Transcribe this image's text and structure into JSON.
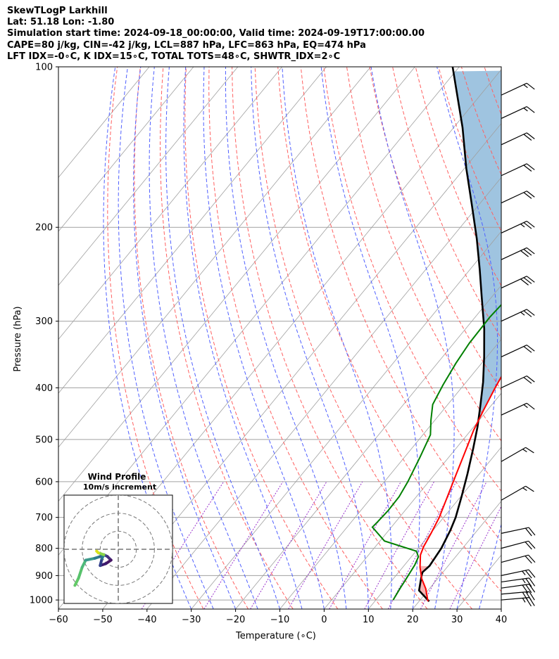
{
  "header": {
    "line1": "SkewTLogP Larkhill",
    "line2": "Lat: 51.18   Lon: -1.80",
    "line3": "Simulation start time: 2024-09-18_00:00:00, Valid time: 2024-09-19T17:00:00.00",
    "line4": "CAPE=80 j/kg, CIN=-42 j/kg, LCL=887 hPa, LFC=863 hPa, EQ=474 hPa",
    "line5": "LFT IDX=-0∘C, K IDX=15∘C, TOTAL TOTS=48∘C, SHWTR_IDX=2∘C"
  },
  "colors": {
    "temperature": "#ff0000",
    "dewpoint": "#008000",
    "parcel": "#000000",
    "cape_fill": "#7fb0d5",
    "dry_adiabat": "#ff6060",
    "moist_adiabat": "#5060ff",
    "mixing_ratio": "#9932cc",
    "isotherm": "#a0a0a0"
  },
  "chart_data": [
    {
      "type": "line",
      "subtype": "skew-T log-P diagram",
      "xlabel": "Temperature (∘C)",
      "ylabel": "Pressure (hPa)",
      "x_ticks": [
        -60,
        -50,
        -40,
        -30,
        -20,
        -10,
        0,
        10,
        20,
        30,
        40
      ],
      "x_tick_labels": [
        "−60",
        "−50",
        "−40",
        "−30",
        "−20",
        "−10",
        "0",
        "10",
        "20",
        "30",
        "40"
      ],
      "y_ticks": [
        100,
        200,
        300,
        400,
        500,
        600,
        700,
        800,
        900,
        1000
      ],
      "y_tick_labels": [
        "100",
        "200",
        "300",
        "400",
        "500",
        "600",
        "700",
        "800",
        "900",
        "1000"
      ],
      "xlim": [
        -60,
        40
      ],
      "ylim": [
        1040,
        100
      ],
      "y_scale": "log",
      "grid": true,
      "series": [
        {
          "key": "temperature",
          "points": [
            [
              1006,
              22.0
            ],
            [
              953,
              19.2
            ],
            [
              912,
              16.4
            ],
            [
              868,
              13.9
            ],
            [
              823,
              11.7
            ],
            [
              794,
              10.9
            ],
            [
              750,
              10.1
            ],
            [
              700,
              9.0
            ],
            [
              640,
              7.0
            ],
            [
              580,
              4.8
            ],
            [
              530,
              2.8
            ],
            [
              480,
              0.6
            ],
            [
              440,
              -0.9
            ],
            [
              400,
              -2.4
            ],
            [
              350,
              -4.2
            ],
            [
              305,
              -6.5
            ],
            [
              270,
              -8.1
            ],
            [
              244,
              -8.8
            ],
            [
              226,
              -9.1
            ],
            [
              210,
              -8.4
            ],
            [
              198,
              -7.1
            ],
            [
              183,
              -5.0
            ],
            [
              170,
              -2.8
            ],
            [
              158,
              -0.8
            ],
            [
              148,
              1.8
            ],
            [
              141,
              3.9
            ],
            [
              133,
              5.7
            ],
            [
              127,
              7.3
            ],
            [
              121,
              9.6
            ],
            [
              116,
              11.2
            ],
            [
              110,
              12.1
            ],
            [
              104,
              12.9
            ],
            [
              100,
              14.8
            ]
          ]
        },
        {
          "key": "dewpoint",
          "points": [
            [
              1000,
              13.9
            ],
            [
              950,
              13.3
            ],
            [
              920,
              13.0
            ],
            [
              860,
              12.3
            ],
            [
              830,
              11.6
            ],
            [
              810,
              10.1
            ],
            [
              775,
              1.0
            ],
            [
              730,
              -4.3
            ],
            [
              715,
              -4.1
            ],
            [
              680,
              -3.8
            ],
            [
              640,
              -3.9
            ],
            [
              600,
              -4.7
            ],
            [
              540,
              -6.5
            ],
            [
              490,
              -8.3
            ],
            [
              460,
              -10.9
            ],
            [
              430,
              -13.4
            ],
            [
              395,
              -14.7
            ],
            [
              360,
              -15.8
            ],
            [
              330,
              -16.5
            ],
            [
              295,
              -16.7
            ],
            [
              270,
              -16.2
            ],
            [
              245,
              -15.8
            ],
            [
              225,
              -16.0
            ],
            [
              205,
              -16.2
            ],
            [
              187,
              -15.9
            ],
            [
              175,
              -15.4
            ],
            [
              160,
              -16.6
            ],
            [
              145,
              -21.9
            ],
            [
              130,
              -20.0
            ],
            [
              118,
              -17.3
            ],
            [
              110,
              -15.7
            ],
            [
              100,
              -13.7
            ]
          ]
        },
        {
          "key": "parcel",
          "points": [
            [
              1006,
              22.3
            ],
            [
              960,
              18.0
            ],
            [
              900,
              15.8
            ],
            [
              887,
              15.4
            ],
            [
              863,
              15.8
            ],
            [
              800,
              15.2
            ],
            [
              740,
              13.9
            ],
            [
              700,
              12.7
            ],
            [
              640,
              10.2
            ],
            [
              580,
              7.3
            ],
            [
              520,
              3.9
            ],
            [
              474,
              0.9
            ],
            [
              430,
              -2.6
            ],
            [
              390,
              -6.2
            ],
            [
              350,
              -10.6
            ],
            [
              310,
              -15.8
            ],
            [
              270,
              -22.3
            ],
            [
              240,
              -27.8
            ],
            [
              210,
              -34.2
            ],
            [
              180,
              -42.0
            ],
            [
              155,
              -49.6
            ],
            [
              130,
              -58.0
            ],
            [
              110,
              -66.6
            ],
            [
              100,
              -71.5
            ]
          ]
        }
      ]
    },
    {
      "type": "line",
      "subtype": "hodograph",
      "title": "Wind Profile",
      "subtitle": "10m/s increment",
      "ring_increment": 10,
      "xlim": [
        -30,
        30
      ],
      "ylim": [
        -30,
        30
      ],
      "series": [
        {
          "key": "wind_profile",
          "points": [
            [
              -24,
              -20
            ],
            [
              -22,
              -16
            ],
            [
              -20,
              -10
            ],
            [
              -18,
              -6
            ],
            [
              -13,
              -5
            ],
            [
              -10,
              -4
            ],
            [
              -8,
              -3
            ],
            [
              -6,
              -4
            ],
            [
              -4,
              -6
            ],
            [
              -7,
              -8
            ],
            [
              -10,
              -9
            ],
            [
              -9,
              -5
            ],
            [
              -8,
              -3
            ],
            [
              -11,
              -2
            ],
            [
              -12,
              -1
            ]
          ]
        }
      ]
    }
  ],
  "wind_barbs": [
    {
      "p": 1000,
      "speed": 25,
      "dir": 265
    },
    {
      "p": 975,
      "speed": 30,
      "dir": 265
    },
    {
      "p": 950,
      "speed": 30,
      "dir": 262
    },
    {
      "p": 925,
      "speed": 25,
      "dir": 262
    },
    {
      "p": 900,
      "speed": 25,
      "dir": 258
    },
    {
      "p": 850,
      "speed": 20,
      "dir": 255
    },
    {
      "p": 800,
      "speed": 20,
      "dir": 255
    },
    {
      "p": 750,
      "speed": 20,
      "dir": 258
    },
    {
      "p": 650,
      "speed": 15,
      "dir": 240
    },
    {
      "p": 550,
      "speed": 15,
      "dir": 240
    },
    {
      "p": 450,
      "speed": 15,
      "dir": 245
    },
    {
      "p": 400,
      "speed": 20,
      "dir": 245
    },
    {
      "p": 350,
      "speed": 20,
      "dir": 245
    },
    {
      "p": 300,
      "speed": 25,
      "dir": 245
    },
    {
      "p": 260,
      "speed": 30,
      "dir": 245
    },
    {
      "p": 230,
      "speed": 30,
      "dir": 245
    },
    {
      "p": 205,
      "speed": 25,
      "dir": 245
    },
    {
      "p": 180,
      "speed": 20,
      "dir": 245
    },
    {
      "p": 160,
      "speed": 20,
      "dir": 245
    },
    {
      "p": 140,
      "speed": 20,
      "dir": 245
    },
    {
      "p": 125,
      "speed": 15,
      "dir": 245
    },
    {
      "p": 113,
      "speed": 15,
      "dir": 245
    }
  ]
}
